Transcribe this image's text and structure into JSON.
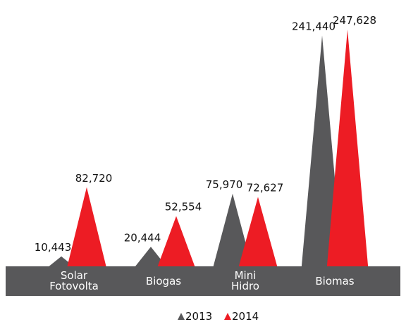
{
  "chart_data": {
    "type": "peak",
    "categories": [
      "Solar Fotovolta",
      "Biogas",
      "Mini Hidro",
      "Biomas"
    ],
    "series": [
      {
        "name": "2013",
        "color": "#58585a",
        "values": [
          10443,
          20444,
          75970,
          241440
        ],
        "value_labels": [
          "10,443",
          "20,444",
          "75,970",
          "241,440"
        ]
      },
      {
        "name": "2014",
        "color": "#ed1c24",
        "values": [
          82720,
          52554,
          72627,
          247628
        ],
        "value_labels": [
          "82,720",
          "52,554",
          "72,627",
          "247,628"
        ]
      }
    ],
    "band_color": "#58585a"
  }
}
